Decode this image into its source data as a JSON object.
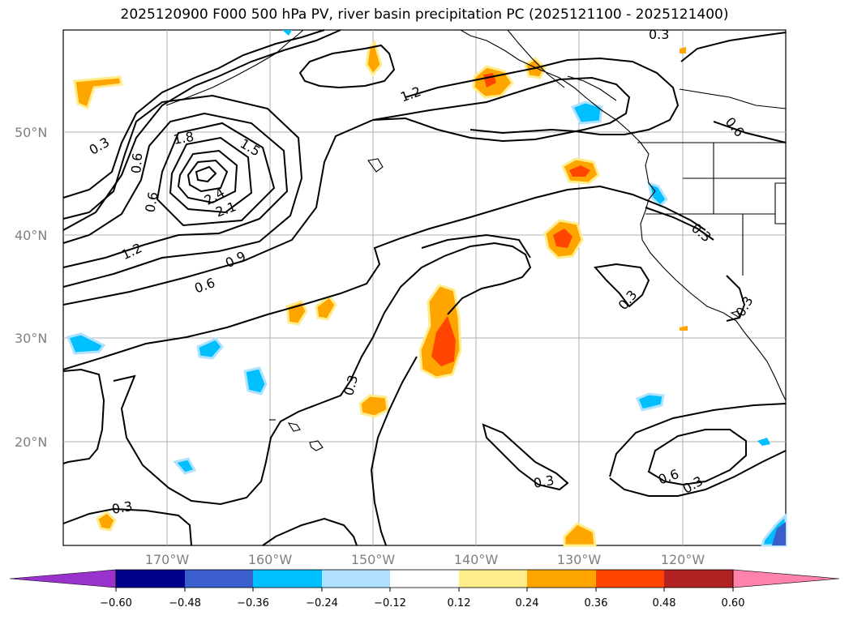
{
  "title": "2025120900 F000 500 hPa PV, river basin precipitation PC (2025121100 - 2025121400)",
  "map": {
    "lat_labels": [
      "50°N",
      "40°N",
      "30°N",
      "20°N"
    ],
    "lon_labels": [
      "170°W",
      "160°W",
      "150°W",
      "140°W",
      "130°W",
      "120°W"
    ],
    "contour_labels": [
      {
        "text": "0.3",
        "key": "c1"
      },
      {
        "text": "0.6",
        "key": "c2"
      },
      {
        "text": "0.6",
        "key": "c3"
      },
      {
        "text": "1.8",
        "key": "c4"
      },
      {
        "text": "1.5",
        "key": "c5"
      },
      {
        "text": "2.4",
        "key": "c6"
      },
      {
        "text": "2.1",
        "key": "c7"
      },
      {
        "text": "1.2",
        "key": "c8"
      },
      {
        "text": "0.9",
        "key": "c9"
      },
      {
        "text": "0.6",
        "key": "c10"
      },
      {
        "text": "1.2",
        "key": "c11"
      },
      {
        "text": "0.3",
        "key": "c12"
      },
      {
        "text": "0.6",
        "key": "c13"
      },
      {
        "text": "0.3",
        "key": "c14"
      },
      {
        "text": "0.3",
        "key": "c15"
      },
      {
        "text": "0.3",
        "key": "c16"
      },
      {
        "text": "0.3",
        "key": "c17"
      },
      {
        "text": "0.3",
        "key": "c18"
      },
      {
        "text": "0.6",
        "key": "c19"
      },
      {
        "text": "0.3",
        "key": "c20"
      },
      {
        "text": "0.3",
        "key": "c21"
      }
    ]
  },
  "colorbar": {
    "ticks": [
      "−0.60",
      "−0.48",
      "−0.36",
      "−0.24",
      "−0.12",
      "0.12",
      "0.24",
      "0.36",
      "0.48",
      "0.60"
    ],
    "colors": {
      "under": "#9932cc",
      "bins": [
        "#00008b",
        "#3a5fcd",
        "#00bfff",
        "#b0e2ff",
        "#ffffff",
        "#ffec8b",
        "#ffa500",
        "#ff4500",
        "#b22222"
      ],
      "over": "#ff82ab"
    }
  }
}
